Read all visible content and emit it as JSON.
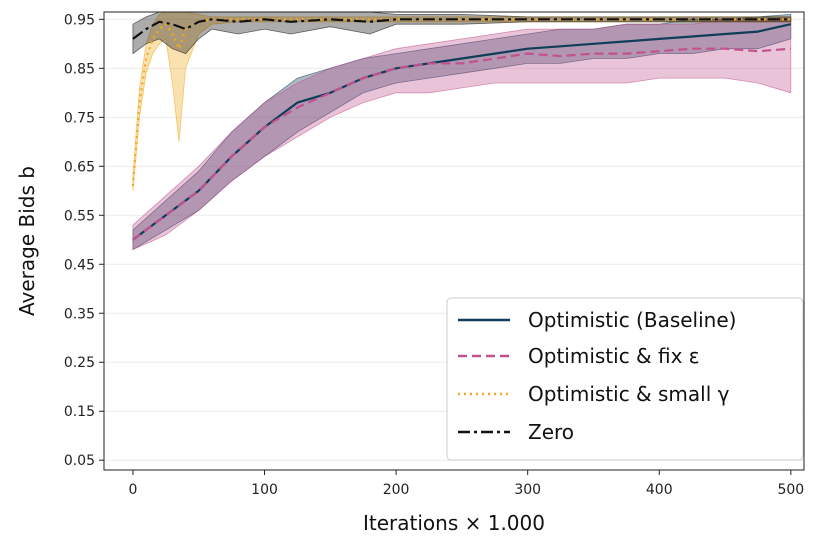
{
  "chart_data": {
    "type": "line",
    "title": "",
    "xlabel": "Iterations × 1.000",
    "ylabel": "Average Bids b",
    "xlim": [
      -22,
      510
    ],
    "ylim": [
      0.03,
      0.965
    ],
    "xticks": [
      0,
      100,
      200,
      300,
      400,
      500
    ],
    "yticks": [
      0.05,
      0.15,
      0.25,
      0.35,
      0.45,
      0.55,
      0.65,
      0.75,
      0.85,
      0.95
    ],
    "xtick_labels": [
      "0",
      "100",
      "200",
      "300",
      "400",
      "500"
    ],
    "ytick_labels": [
      "0.05",
      "0.15",
      "0.25",
      "0.35",
      "0.45",
      "0.55",
      "0.65",
      "0.75",
      "0.85",
      "0.95"
    ],
    "grid": true,
    "legend_position": "lower-right",
    "series": [
      {
        "name": "Optimistic (Baseline)",
        "color": "#0f3d5a",
        "style": "solid",
        "shaded_band": true,
        "x": [
          0,
          25,
          50,
          75,
          100,
          125,
          150,
          175,
          200,
          225,
          250,
          275,
          300,
          325,
          350,
          375,
          400,
          425,
          450,
          475,
          500
        ],
        "y": [
          0.5,
          0.55,
          0.6,
          0.67,
          0.73,
          0.78,
          0.8,
          0.83,
          0.85,
          0.86,
          0.87,
          0.88,
          0.89,
          0.895,
          0.9,
          0.905,
          0.91,
          0.915,
          0.92,
          0.925,
          0.94
        ],
        "lower": [
          0.48,
          0.52,
          0.56,
          0.62,
          0.67,
          0.72,
          0.76,
          0.8,
          0.82,
          0.83,
          0.84,
          0.85,
          0.86,
          0.86,
          0.87,
          0.87,
          0.88,
          0.88,
          0.89,
          0.89,
          0.91
        ],
        "upper": [
          0.52,
          0.58,
          0.64,
          0.72,
          0.78,
          0.83,
          0.85,
          0.87,
          0.88,
          0.89,
          0.9,
          0.91,
          0.92,
          0.93,
          0.93,
          0.94,
          0.94,
          0.95,
          0.95,
          0.955,
          0.96
        ]
      },
      {
        "name": "Optimistic & fix ε",
        "color": "#c1528e",
        "style": "dashed",
        "shaded_band": true,
        "x": [
          0,
          25,
          50,
          75,
          100,
          125,
          150,
          175,
          200,
          225,
          250,
          275,
          300,
          325,
          350,
          375,
          400,
          425,
          450,
          475,
          500
        ],
        "y": [
          0.5,
          0.55,
          0.6,
          0.67,
          0.73,
          0.77,
          0.8,
          0.83,
          0.85,
          0.86,
          0.86,
          0.87,
          0.88,
          0.875,
          0.88,
          0.88,
          0.885,
          0.89,
          0.89,
          0.885,
          0.89
        ],
        "lower": [
          0.48,
          0.51,
          0.56,
          0.62,
          0.67,
          0.71,
          0.75,
          0.78,
          0.8,
          0.8,
          0.81,
          0.82,
          0.82,
          0.82,
          0.82,
          0.82,
          0.83,
          0.83,
          0.83,
          0.82,
          0.8
        ],
        "upper": [
          0.53,
          0.59,
          0.65,
          0.72,
          0.78,
          0.82,
          0.85,
          0.87,
          0.89,
          0.9,
          0.91,
          0.92,
          0.93,
          0.93,
          0.93,
          0.94,
          0.94,
          0.94,
          0.95,
          0.95,
          0.95
        ]
      },
      {
        "name": "Optimistic & small γ",
        "color": "#f2a81d",
        "style": "dotted",
        "shaded_band": true,
        "x": [
          0,
          5,
          10,
          15,
          20,
          25,
          30,
          35,
          40,
          50,
          60,
          80,
          100,
          150,
          200,
          250,
          300,
          350,
          400,
          450,
          500
        ],
        "y": [
          0.61,
          0.78,
          0.87,
          0.91,
          0.93,
          0.94,
          0.92,
          0.89,
          0.93,
          0.945,
          0.95,
          0.95,
          0.95,
          0.95,
          0.95,
          0.95,
          0.95,
          0.95,
          0.95,
          0.95,
          0.95
        ],
        "lower": [
          0.6,
          0.75,
          0.84,
          0.88,
          0.9,
          0.91,
          0.82,
          0.7,
          0.85,
          0.92,
          0.94,
          0.945,
          0.945,
          0.945,
          0.945,
          0.945,
          0.945,
          0.945,
          0.945,
          0.945,
          0.945
        ],
        "upper": [
          0.63,
          0.81,
          0.9,
          0.94,
          0.96,
          0.965,
          0.965,
          0.965,
          0.965,
          0.96,
          0.955,
          0.955,
          0.955,
          0.955,
          0.955,
          0.955,
          0.955,
          0.955,
          0.955,
          0.955,
          0.955
        ]
      },
      {
        "name": "Zero",
        "color": "#111111",
        "style": "dashdot",
        "shaded_band": true,
        "x": [
          0,
          10,
          20,
          30,
          40,
          50,
          60,
          80,
          100,
          120,
          150,
          180,
          200,
          250,
          300,
          350,
          400,
          450,
          500
        ],
        "y": [
          0.91,
          0.93,
          0.945,
          0.94,
          0.93,
          0.945,
          0.95,
          0.945,
          0.95,
          0.945,
          0.95,
          0.945,
          0.95,
          0.95,
          0.95,
          0.95,
          0.95,
          0.95,
          0.95
        ],
        "lower": [
          0.88,
          0.9,
          0.91,
          0.89,
          0.88,
          0.91,
          0.93,
          0.92,
          0.93,
          0.92,
          0.935,
          0.92,
          0.94,
          0.94,
          0.945,
          0.945,
          0.945,
          0.945,
          0.945
        ],
        "upper": [
          0.94,
          0.955,
          0.965,
          0.965,
          0.965,
          0.965,
          0.965,
          0.965,
          0.965,
          0.965,
          0.965,
          0.965,
          0.96,
          0.96,
          0.955,
          0.955,
          0.955,
          0.955,
          0.955
        ]
      }
    ]
  }
}
